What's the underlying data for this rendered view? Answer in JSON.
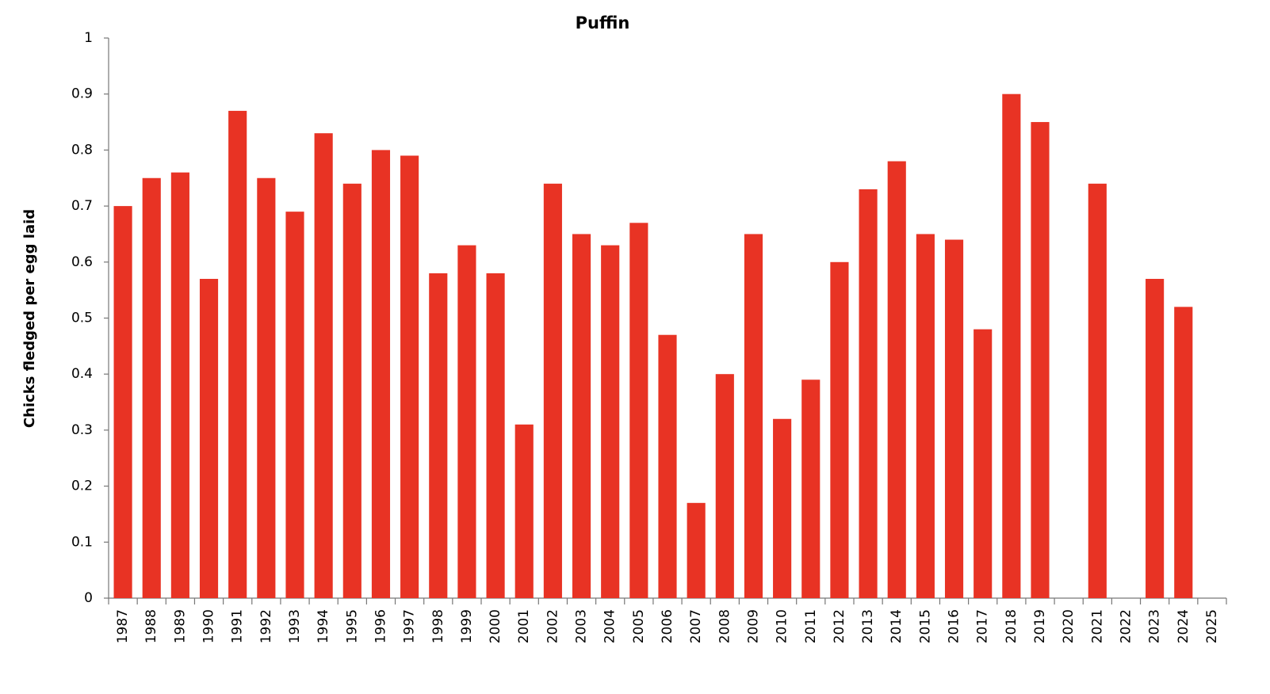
{
  "chart_data": {
    "type": "bar",
    "title": "Puffin",
    "y_label": "Chicks fledged per egg laid",
    "categories": [
      "1987",
      "1988",
      "1989",
      "1990",
      "1991",
      "1992",
      "1993",
      "1994",
      "1995",
      "1996",
      "1997",
      "1998",
      "1999",
      "2000",
      "2001",
      "2002",
      "2003",
      "2004",
      "2005",
      "2006",
      "2007",
      "2008",
      "2009",
      "2010",
      "2011",
      "2012",
      "2013",
      "2014",
      "2015",
      "2016",
      "2017",
      "2018",
      "2019",
      "2020",
      "2021",
      "2022",
      "2023",
      "2024",
      "2025"
    ],
    "values": [
      0.7,
      0.75,
      0.76,
      0.57,
      0.87,
      0.75,
      0.69,
      0.83,
      0.74,
      0.8,
      0.79,
      0.58,
      0.63,
      0.58,
      0.31,
      0.74,
      0.65,
      0.63,
      0.67,
      0.47,
      0.17,
      0.4,
      0.65,
      0.32,
      0.39,
      0.6,
      0.73,
      0.78,
      0.65,
      0.64,
      0.48,
      0.9,
      0.85,
      null,
      0.74,
      null,
      0.57,
      0.52,
      null
    ],
    "color": "#e83324",
    "ylim": [
      0,
      1
    ],
    "yticks": [
      0,
      0.1,
      0.2,
      0.3,
      0.4,
      0.5,
      0.6,
      0.7,
      0.8,
      0.9,
      1
    ],
    "grid": false
  }
}
